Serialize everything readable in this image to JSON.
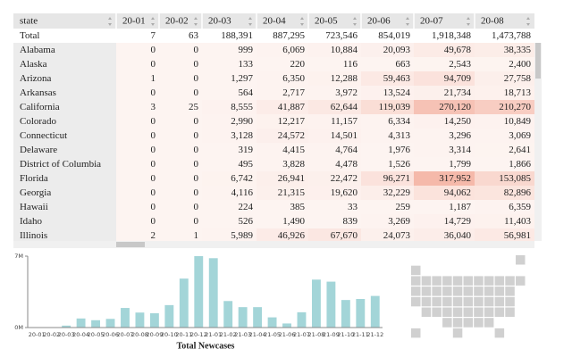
{
  "table": {
    "columns": [
      "state",
      "20-01",
      "20-02",
      "20-03",
      "20-04",
      "20-05",
      "20-06",
      "20-07",
      "20-08"
    ],
    "rows": [
      [
        "Total",
        "7",
        "63",
        "188,391",
        "887,295",
        "723,546",
        "854,019",
        "1,918,348",
        "1,473,788"
      ],
      [
        "Alabama",
        "0",
        "0",
        "999",
        "6,069",
        "10,884",
        "20,093",
        "49,678",
        "38,335"
      ],
      [
        "Alaska",
        "0",
        "0",
        "133",
        "220",
        "116",
        "663",
        "2,543",
        "2,400"
      ],
      [
        "Arizona",
        "1",
        "0",
        "1,297",
        "6,350",
        "12,288",
        "59,463",
        "94,709",
        "27,758"
      ],
      [
        "Arkansas",
        "0",
        "0",
        "564",
        "2,717",
        "3,972",
        "13,524",
        "21,734",
        "18,713"
      ],
      [
        "California",
        "3",
        "25",
        "8,555",
        "41,887",
        "62,644",
        "119,039",
        "270,120",
        "210,270"
      ],
      [
        "Colorado",
        "0",
        "0",
        "2,990",
        "12,217",
        "11,157",
        "6,334",
        "14,250",
        "10,849"
      ],
      [
        "Connecticut",
        "0",
        "0",
        "3,128",
        "24,572",
        "14,501",
        "4,313",
        "3,296",
        "3,069"
      ],
      [
        "Delaware",
        "0",
        "0",
        "319",
        "4,415",
        "4,764",
        "1,976",
        "3,314",
        "2,641"
      ],
      [
        "District of Columbia",
        "0",
        "0",
        "495",
        "3,828",
        "4,478",
        "1,526",
        "1,799",
        "1,866"
      ],
      [
        "Florida",
        "0",
        "0",
        "6,742",
        "26,941",
        "22,472",
        "96,271",
        "317,952",
        "153,085"
      ],
      [
        "Georgia",
        "0",
        "0",
        "4,116",
        "21,315",
        "19,620",
        "32,229",
        "94,062",
        "82,896"
      ],
      [
        "Hawaii",
        "0",
        "0",
        "224",
        "385",
        "33",
        "259",
        "1,187",
        "6,359"
      ],
      [
        "Idaho",
        "0",
        "0",
        "526",
        "1,490",
        "839",
        "3,269",
        "14,729",
        "11,403"
      ],
      [
        "Illinois",
        "2",
        "1",
        "5,989",
        "46,926",
        "67,670",
        "24,073",
        "36,040",
        "56,981"
      ]
    ]
  },
  "chart_data": {
    "type": "bar",
    "title": "Total Newcases",
    "categories": [
      "20-01",
      "20-02",
      "20-03",
      "20-04",
      "20-05",
      "20-06",
      "20-07",
      "20-08",
      "20-09",
      "20-10",
      "20-11",
      "20-12",
      "21-01",
      "21-02",
      "21-03",
      "21-04",
      "21-05",
      "21-06",
      "21-07",
      "21-08",
      "21-09",
      "21-10",
      "21-11",
      "21-12"
    ],
    "values": [
      0,
      0,
      0.19,
      0.89,
      0.72,
      0.85,
      1.92,
      1.47,
      1.4,
      2.2,
      4.8,
      7.0,
      6.8,
      2.6,
      2.0,
      2.0,
      1.0,
      0.4,
      1.5,
      4.7,
      4.5,
      2.7,
      2.8,
      3.1
    ],
    "color": "#a3d5d8",
    "ylim": [
      0,
      7
    ],
    "yticks": [
      {
        "value": 0,
        "label": "0M"
      },
      {
        "value": 7,
        "label": "7M"
      }
    ]
  }
}
